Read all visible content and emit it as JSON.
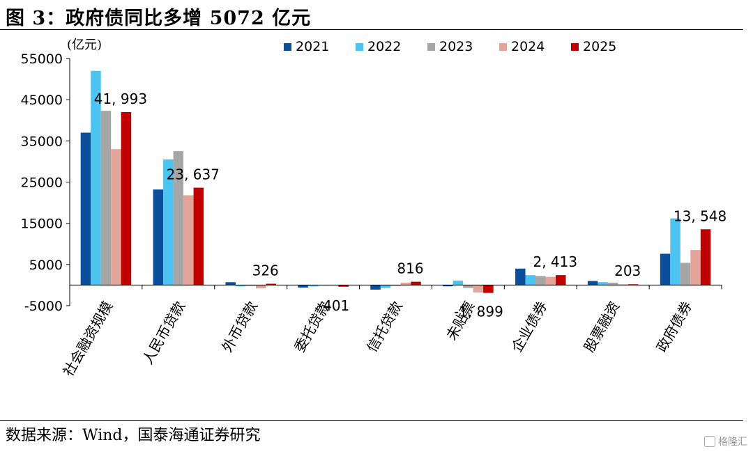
{
  "header": {
    "title": "图 3：政府债同比多增 5072 亿元"
  },
  "footer": {
    "source": "数据来源：Wind，国泰海通证券研究",
    "watermark": "格隆汇"
  },
  "chart_data": {
    "type": "bar",
    "unit_label": "(亿元)",
    "categories": [
      "社会融资规模",
      "人民币贷款",
      "外币贷款",
      "委托贷款",
      "信托贷款",
      "未贴票",
      "企业债券",
      "股票融资",
      "政府债券"
    ],
    "series": [
      {
        "name": "2021",
        "color": "#0b4f9c",
        "values": [
          37000,
          23200,
          700,
          -600,
          -1100,
          -300,
          4000,
          1000,
          7600
        ]
      },
      {
        "name": "2022",
        "color": "#4cc3f0",
        "values": [
          52000,
          30500,
          -300,
          -300,
          -700,
          1100,
          2400,
          700,
          16200
        ]
      },
      {
        "name": "2023",
        "color": "#a6a6a6",
        "values": [
          42300,
          32500,
          -200,
          -100,
          -200,
          -700,
          2200,
          600,
          5400
        ]
      },
      {
        "name": "2024",
        "color": "#e3a59a",
        "values": [
          33000,
          21800,
          -800,
          0,
          600,
          -1800,
          2000,
          200,
          8500
        ]
      },
      {
        "name": "2025",
        "color": "#c00000",
        "values": [
          41993,
          23637,
          326,
          -401,
          816,
          -1899,
          2413,
          203,
          13548
        ]
      }
    ],
    "data_labels": [
      "41, 993",
      "23, 637",
      "326",
      "-401",
      "816",
      "-1, 899",
      "2, 413",
      "203",
      "13, 548"
    ],
    "y_ticks": [
      -5000,
      5000,
      15000,
      25000,
      35000,
      45000,
      55000
    ],
    "ylim": [
      -5000,
      55000
    ],
    "grid": false,
    "legend_position": "top-center"
  }
}
